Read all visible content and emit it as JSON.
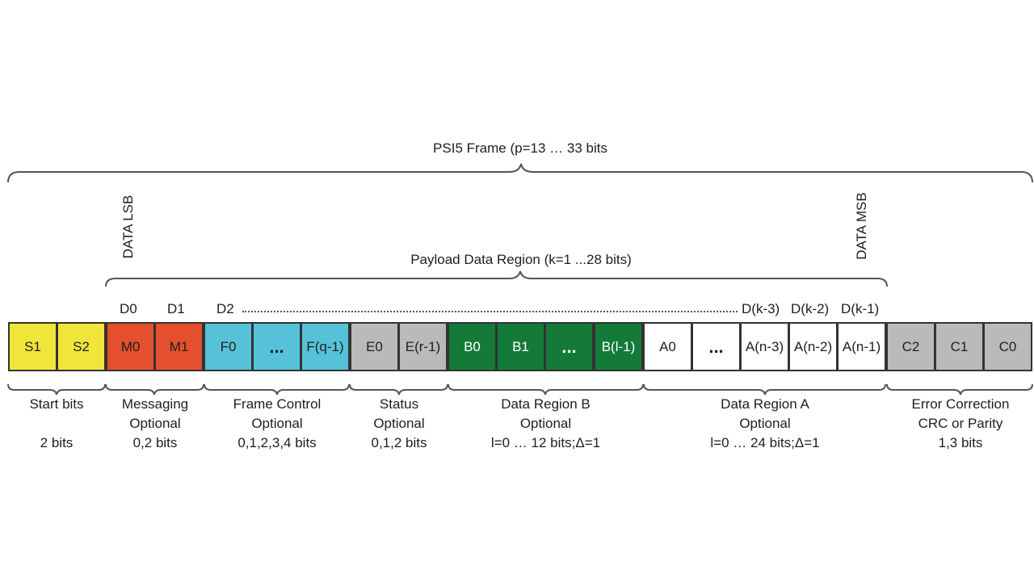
{
  "frame_title": "PSI5 Frame (p=13 … 33 bits",
  "payload_title": "Payload Data Region (k=1 ...28 bits)",
  "data_lsb": "DATA LSB",
  "data_msb": "DATA MSB",
  "d_labels": {
    "d0": "D0",
    "d1": "D1",
    "d2": "D2",
    "dk3": "D(k-3)",
    "dk2": "D(k-2)",
    "dk1": "D(k-1)"
  },
  "colors": {
    "start": "#f2e53a",
    "messaging": "#e4502d",
    "frame_control": "#56c2d9",
    "status": "#b9babb",
    "data_b": "#147a3a",
    "data_a": "#ffffff",
    "crc": "#b9babb"
  },
  "cells": {
    "s1": "S1",
    "s2": "S2",
    "m0": "M0",
    "m1": "M1",
    "f0": "F0",
    "f_dots": "...",
    "fq1": "F(q-1)",
    "e0": "E0",
    "er1": "E(r-1)",
    "b0": "B0",
    "b1": "B1",
    "b_dots": "...",
    "bl1": "B(l-1)",
    "a0": "A0",
    "a_dots": "...",
    "an3": "A(n-3)",
    "an2": "A(n-2)",
    "an1": "A(n-1)",
    "c2": "C2",
    "c1": "C1",
    "c0": "C0"
  },
  "captions": {
    "start": {
      "line1": "Start bits",
      "line2": "",
      "line3": "2 bits"
    },
    "messaging": {
      "line1": "Messaging",
      "line2": "Optional",
      "line3": "0,2 bits"
    },
    "frame_control": {
      "line1": "Frame Control",
      "line2": "Optional",
      "line3": "0,1,2,3,4 bits"
    },
    "status": {
      "line1": "Status",
      "line2": "Optional",
      "line3": "0,1,2 bits"
    },
    "data_b": {
      "line1": "Data Region B",
      "line2": "Optional",
      "line3": "l=0 … 12 bits;Δ=1"
    },
    "data_a": {
      "line1": "Data Region A",
      "line2": "Optional",
      "line3": "l=0 … 24 bits;Δ=1"
    },
    "crc": {
      "line1": "Error Correction",
      "line2": "CRC or Parity",
      "line3": "1,3 bits"
    }
  }
}
